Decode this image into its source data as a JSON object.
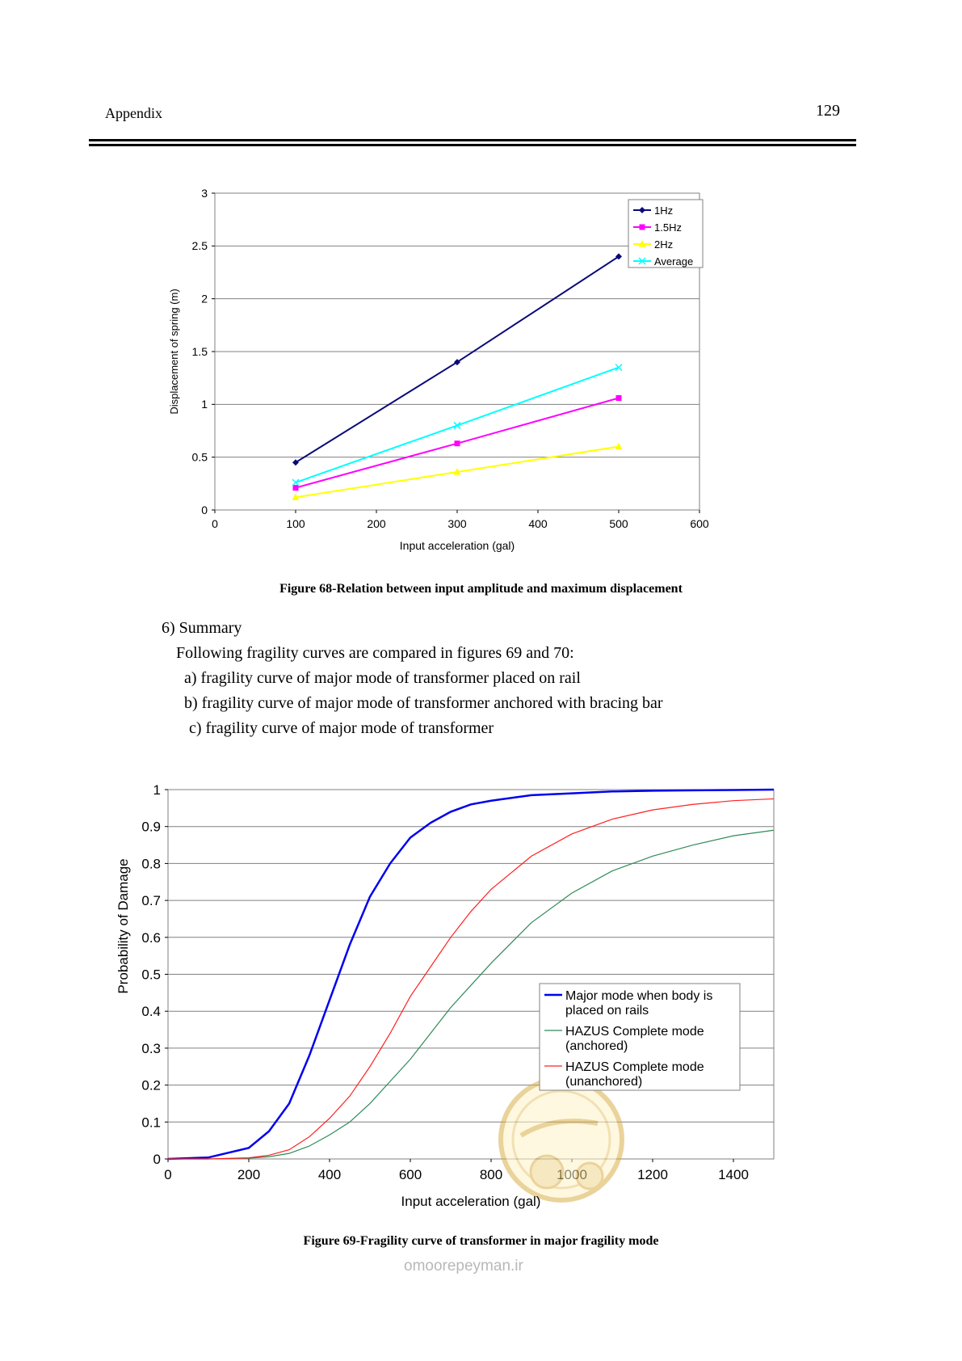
{
  "header": {
    "running_head": "Appendix",
    "page_number": "129"
  },
  "figure68": {
    "caption": "Figure 68-Relation between input amplitude and maximum displacement"
  },
  "section": {
    "heading": "6) Summary",
    "intro": "Following fragility curves are compared in figures 69 and 70:",
    "items": [
      "a) fragility curve of major mode of transformer placed on rail",
      "b) fragility curve of major mode of transformer anchored with bracing bar",
      "c) fragility curve of major mode of transformer"
    ]
  },
  "figure69": {
    "caption": "Figure 69-Fragility curve of transformer in major fragility mode"
  },
  "watermark": {
    "url": "omoorepeyman.ir"
  },
  "chart_data": [
    {
      "type": "line",
      "xlabel": "Input acceleration (gal)",
      "ylabel": "Displacement of spring (m)",
      "xlim": [
        0,
        600
      ],
      "ylim": [
        0,
        3
      ],
      "xticks": [
        "0",
        "100",
        "200",
        "300",
        "400",
        "500",
        "600"
      ],
      "yticks": [
        "0",
        "0.5",
        "1",
        "1.5",
        "2",
        "2.5",
        "3"
      ],
      "grid": "horizontal",
      "legend": "top-right",
      "x": [
        100,
        300,
        500
      ],
      "series": [
        {
          "name": "1Hz",
          "color": "#0a0a78",
          "marker": "diamond",
          "values": [
            0.45,
            1.4,
            2.4
          ]
        },
        {
          "name": "1.5Hz",
          "color": "#ff00ff",
          "marker": "square",
          "values": [
            0.21,
            0.63,
            1.06
          ]
        },
        {
          "name": "2Hz",
          "color": "#ffff00",
          "marker": "triangle",
          "values": [
            0.12,
            0.36,
            0.6
          ]
        },
        {
          "name": "Average",
          "color": "#00ffff",
          "marker": "x",
          "values": [
            0.26,
            0.8,
            1.35
          ]
        }
      ]
    },
    {
      "type": "line",
      "xlabel": "Input acceleration (gal)",
      "ylabel": "Probability of Damage",
      "xlim": [
        0,
        1500
      ],
      "ylim": [
        0,
        1
      ],
      "xticks": [
        "0",
        "200",
        "400",
        "600",
        "800",
        "1000",
        "1200",
        "1400"
      ],
      "yticks": [
        "0",
        "0.1",
        "0.2",
        "0.3",
        "0.4",
        "0.5",
        "0.6",
        "0.7",
        "0.8",
        "0.9",
        "1"
      ],
      "grid": "horizontal",
      "legend": "center-right",
      "x": [
        0,
        100,
        200,
        250,
        300,
        350,
        400,
        450,
        500,
        550,
        600,
        650,
        700,
        750,
        800,
        900,
        1000,
        1100,
        1200,
        1300,
        1400,
        1500
      ],
      "series": [
        {
          "name": "Major mode when body is placed on rails",
          "color": "#0000ee",
          "values": [
            0,
            0.004,
            0.03,
            0.075,
            0.15,
            0.28,
            0.43,
            0.58,
            0.71,
            0.8,
            0.87,
            0.91,
            0.94,
            0.96,
            0.97,
            0.985,
            0.99,
            0.995,
            0.997,
            0.998,
            0.999,
            1.0
          ]
        },
        {
          "name": "HAZUS Complete mode (anchored)",
          "color": "#2e8b57",
          "values": [
            0,
            0,
            0.002,
            0.006,
            0.015,
            0.035,
            0.065,
            0.1,
            0.15,
            0.21,
            0.27,
            0.34,
            0.41,
            0.47,
            0.53,
            0.64,
            0.72,
            0.78,
            0.82,
            0.85,
            0.875,
            0.89
          ]
        },
        {
          "name": "HAZUS Complete mode (unanchored)",
          "color": "#ff2020",
          "values": [
            0,
            0,
            0.003,
            0.01,
            0.025,
            0.06,
            0.11,
            0.17,
            0.25,
            0.34,
            0.44,
            0.52,
            0.6,
            0.67,
            0.73,
            0.82,
            0.88,
            0.92,
            0.945,
            0.96,
            0.97,
            0.975
          ]
        }
      ]
    }
  ]
}
